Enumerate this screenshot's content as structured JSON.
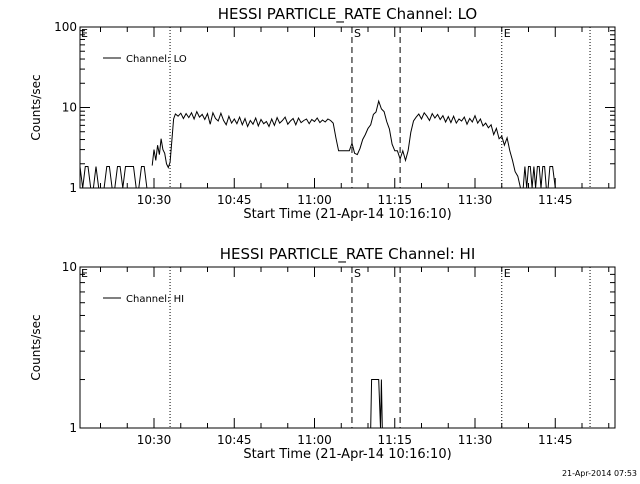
{
  "footer": {
    "timestamp": "21-Apr-2014 07:53"
  },
  "chart_data": [
    {
      "type": "line",
      "title": "HESSI PARTICLE_RATE Channel: LO",
      "xlabel": "Start Time (21-Apr-14 10:16:10)",
      "ylabel": "Counts/sec",
      "yscale": "log",
      "ylim": [
        1,
        100
      ],
      "xlim": [
        "10:16:10",
        "11:56:10"
      ],
      "x_ticks": [
        "10:30",
        "10:45",
        "11:00",
        "11:15",
        "11:30",
        "11:45"
      ],
      "y_ticks": [
        "1",
        "10",
        "100"
      ],
      "legend": {
        "position": "top-left",
        "entries": [
          "Channel: LO"
        ]
      },
      "markers": [
        {
          "time": "10:33:00",
          "label": "",
          "style": "dotted"
        },
        {
          "time": "11:07:00",
          "label": "S",
          "style": "dashed"
        },
        {
          "time": "11:16:00",
          "label": "",
          "style": "dashed"
        },
        {
          "time": "11:35:00",
          "label": "E",
          "style": "dotted"
        },
        {
          "time": "11:51:30",
          "label": "",
          "style": "dotted"
        }
      ],
      "corner_label": "E",
      "series": [
        {
          "segments": [
            [
              [
                "10:16:10",
                1.85
              ],
              [
                "10:16:40",
                1
              ],
              [
                "10:17:10",
                1.85
              ],
              [
                "10:17:40",
                1.85
              ],
              [
                "10:18:10",
                1
              ],
              [
                "10:18:40",
                1
              ],
              [
                "10:19:10",
                1.85
              ],
              [
                "10:19:40",
                1
              ],
              [
                "10:20:10",
                1
              ],
              [
                "10:20:40",
                1
              ],
              [
                "10:21:10",
                1.85
              ],
              [
                "10:21:40",
                1.85
              ],
              [
                "10:22:10",
                1
              ],
              [
                "10:22:40",
                1
              ],
              [
                "10:23:10",
                1.85
              ],
              [
                "10:23:40",
                1.85
              ],
              [
                "10:24:10",
                1
              ],
              [
                "10:24:40",
                1.85
              ],
              [
                "10:25:10",
                1.85
              ],
              [
                "10:25:40",
                1.85
              ],
              [
                "10:26:10",
                1.85
              ],
              [
                "10:26:40",
                1
              ],
              [
                "10:27:10",
                1
              ],
              [
                "10:27:40",
                1.85
              ],
              [
                "10:28:10",
                1.85
              ],
              [
                "10:28:40",
                1
              ]
            ],
            [
              [
                "10:29:40",
                1.9
              ],
              [
                "10:30:00",
                3
              ],
              [
                "10:30:20",
                2.2
              ],
              [
                "10:30:40",
                3.4
              ],
              [
                "10:31:00",
                2.6
              ],
              [
                "10:31:20",
                4.1
              ],
              [
                "10:31:40",
                3
              ],
              [
                "10:32:00",
                2.7
              ],
              [
                "10:32:20",
                2
              ],
              [
                "10:32:40",
                1.8
              ],
              [
                "10:33:00",
                2.1
              ],
              [
                "10:33:20",
                3.8
              ],
              [
                "10:33:40",
                7.2
              ],
              [
                "10:34:00",
                8.3
              ],
              [
                "10:34:30",
                7.8
              ],
              [
                "10:35:00",
                8.5
              ],
              [
                "10:35:30",
                7.3
              ],
              [
                "10:36:00",
                8.4
              ],
              [
                "10:36:30",
                7.5
              ],
              [
                "10:37:00",
                8.6
              ],
              [
                "10:37:30",
                7.2
              ],
              [
                "10:38:00",
                8.9
              ],
              [
                "10:38:30",
                7.6
              ],
              [
                "10:39:00",
                8.2
              ],
              [
                "10:39:30",
                7.1
              ],
              [
                "10:40:00",
                8.4
              ],
              [
                "10:40:30",
                6.2
              ],
              [
                "10:41:00",
                8.6
              ],
              [
                "10:41:30",
                7.3
              ],
              [
                "10:42:00",
                6.8
              ],
              [
                "10:42:30",
                8.5
              ],
              [
                "10:43:00",
                6.9
              ],
              [
                "10:43:30",
                6.1
              ],
              [
                "10:44:00",
                7.8
              ],
              [
                "10:44:30",
                6.4
              ],
              [
                "10:45:00",
                7.2
              ],
              [
                "10:45:30",
                6.3
              ],
              [
                "10:46:00",
                7.6
              ],
              [
                "10:46:30",
                6.1
              ],
              [
                "10:47:00",
                7.3
              ],
              [
                "10:47:30",
                5.8
              ],
              [
                "10:48:00",
                6.9
              ],
              [
                "10:48:30",
                6.2
              ],
              [
                "10:49:00",
                7.4
              ],
              [
                "10:49:30",
                5.9
              ],
              [
                "10:50:00",
                7.1
              ],
              [
                "10:50:30",
                6.3
              ],
              [
                "10:51:00",
                6.7
              ],
              [
                "10:51:30",
                5.8
              ],
              [
                "10:52:00",
                7.2
              ],
              [
                "10:52:30",
                6
              ],
              [
                "10:53:00",
                7.5
              ],
              [
                "10:53:30",
                6.4
              ],
              [
                "10:54:00",
                6.9
              ],
              [
                "10:54:30",
                7.6
              ],
              [
                "10:55:00",
                6.2
              ],
              [
                "10:55:30",
                6.8
              ],
              [
                "10:56:00",
                7.3
              ],
              [
                "10:56:30",
                6.1
              ],
              [
                "10:57:00",
                7.4
              ],
              [
                "10:57:30",
                6.5
              ],
              [
                "10:58:00",
                6.9
              ],
              [
                "10:58:30",
                7.2
              ],
              [
                "10:59:00",
                6.3
              ],
              [
                "10:59:30",
                7.1
              ],
              [
                "11:00:00",
                6.7
              ],
              [
                "11:00:30",
                7.4
              ],
              [
                "11:01:00",
                6.5
              ],
              [
                "11:01:30",
                7
              ],
              [
                "11:02:00",
                6.6
              ],
              [
                "11:02:30",
                7.2
              ],
              [
                "11:03:00",
                6.9
              ],
              [
                "11:03:30",
                6.4
              ],
              [
                "11:04:00",
                4.2
              ],
              [
                "11:04:30",
                2.9
              ],
              [
                "11:05:00",
                2.9
              ],
              [
                "11:05:30",
                2.9
              ],
              [
                "11:06:00",
                2.9
              ],
              [
                "11:06:30",
                2.9
              ],
              [
                "11:07:00",
                3.6
              ],
              [
                "11:07:30",
                2.7
              ],
              [
                "11:08:00",
                2.6
              ],
              [
                "11:08:30",
                3.1
              ],
              [
                "11:09:00",
                4
              ],
              [
                "11:09:30",
                4.6
              ],
              [
                "11:10:00",
                5.5
              ],
              [
                "11:10:30",
                6.1
              ],
              [
                "11:11:00",
                8.2
              ],
              [
                "11:11:30",
                8.8
              ],
              [
                "11:12:00",
                12
              ],
              [
                "11:12:30",
                9.6
              ],
              [
                "11:13:00",
                8.9
              ],
              [
                "11:13:30",
                6.7
              ],
              [
                "11:14:00",
                5.4
              ],
              [
                "11:14:30",
                3.5
              ],
              [
                "11:15:00",
                2.9
              ],
              [
                "11:15:30",
                2.9
              ],
              [
                "11:16:00",
                2.3
              ],
              [
                "11:16:30",
                2.9
              ],
              [
                "11:17:00",
                2.2
              ],
              [
                "11:17:30",
                2.9
              ],
              [
                "11:18:00",
                4.9
              ],
              [
                "11:18:30",
                6.8
              ],
              [
                "11:19:00",
                7.6
              ],
              [
                "11:19:30",
                8.3
              ],
              [
                "11:20:00",
                7.2
              ],
              [
                "11:20:30",
                8.6
              ],
              [
                "11:21:00",
                7.8
              ],
              [
                "11:21:30",
                6.9
              ],
              [
                "11:22:00",
                8.4
              ],
              [
                "11:22:30",
                7.4
              ],
              [
                "11:23:00",
                8.2
              ],
              [
                "11:23:30",
                7.1
              ],
              [
                "11:24:00",
                7.9
              ],
              [
                "11:24:30",
                6.6
              ],
              [
                "11:25:00",
                7.7
              ],
              [
                "11:25:30",
                6.5
              ],
              [
                "11:26:00",
                7.8
              ],
              [
                "11:26:30",
                6.4
              ],
              [
                "11:27:00",
                7.2
              ],
              [
                "11:27:30",
                6.8
              ],
              [
                "11:28:00",
                7.6
              ],
              [
                "11:28:30",
                6.2
              ],
              [
                "11:29:00",
                7.3
              ],
              [
                "11:29:30",
                6.6
              ],
              [
                "11:30:00",
                7.9
              ],
              [
                "11:30:30",
                6.4
              ],
              [
                "11:31:00",
                7.2
              ],
              [
                "11:31:30",
                5.9
              ],
              [
                "11:32:00",
                6.4
              ],
              [
                "11:32:30",
                5.6
              ],
              [
                "11:33:00",
                6.1
              ],
              [
                "11:33:30",
                4.6
              ],
              [
                "11:34:00",
                5.5
              ],
              [
                "11:34:30",
                4.1
              ],
              [
                "11:35:00",
                4.4
              ],
              [
                "11:35:30",
                3.4
              ],
              [
                "11:36:00",
                4.2
              ],
              [
                "11:36:30",
                2.9
              ],
              [
                "11:37:00",
                2.2
              ],
              [
                "11:37:30",
                1.6
              ],
              [
                "11:38:00",
                1.4
              ],
              [
                "11:38:30",
                1
              ]
            ],
            [
              [
                "11:39:00",
                1
              ],
              [
                "11:39:20",
                1.85
              ],
              [
                "11:39:40",
                1
              ],
              [
                "11:40:00",
                1.85
              ],
              [
                "11:40:20",
                1.85
              ],
              [
                "11:40:40",
                1
              ],
              [
                "11:41:00",
                1.85
              ],
              [
                "11:41:20",
                1
              ],
              [
                "11:41:40",
                1.85
              ],
              [
                "11:42:00",
                1.85
              ],
              [
                "11:42:20",
                1
              ],
              [
                "11:42:40",
                1.85
              ],
              [
                "11:43:00",
                1.85
              ],
              [
                "11:43:20",
                1
              ],
              [
                "11:43:40",
                1
              ],
              [
                "11:44:00",
                1.85
              ],
              [
                "11:44:30",
                1.85
              ],
              [
                "11:45:00",
                1
              ]
            ]
          ]
        }
      ]
    },
    {
      "type": "line",
      "title": "HESSI PARTICLE_RATE Channel: HI",
      "xlabel": "Start Time (21-Apr-14 10:16:10)",
      "ylabel": "Counts/sec",
      "yscale": "log",
      "ylim": [
        1,
        10
      ],
      "xlim": [
        "10:16:10",
        "11:56:10"
      ],
      "x_ticks": [
        "10:30",
        "10:45",
        "11:00",
        "11:15",
        "11:30",
        "11:45"
      ],
      "y_ticks": [
        "1",
        "10"
      ],
      "legend": {
        "position": "top-left",
        "entries": [
          "Channel: HI"
        ]
      },
      "markers": [
        {
          "time": "10:33:00",
          "label": "",
          "style": "dotted"
        },
        {
          "time": "11:07:00",
          "label": "S",
          "style": "dashed"
        },
        {
          "time": "11:16:00",
          "label": "",
          "style": "dashed"
        },
        {
          "time": "11:35:00",
          "label": "E",
          "style": "dotted"
        },
        {
          "time": "11:51:30",
          "label": "",
          "style": "dotted"
        }
      ],
      "corner_label": "E",
      "series": [
        {
          "segments": [
            [
              [
                "11:10:30",
                1
              ],
              [
                "11:10:40",
                2
              ],
              [
                "11:11:00",
                2
              ],
              [
                "11:11:20",
                2
              ],
              [
                "11:11:40",
                2
              ],
              [
                "11:12:00",
                2
              ],
              [
                "11:12:20",
                1
              ],
              [
                "11:12:30",
                2
              ],
              [
                "11:12:40",
                1
              ]
            ]
          ]
        }
      ]
    }
  ]
}
